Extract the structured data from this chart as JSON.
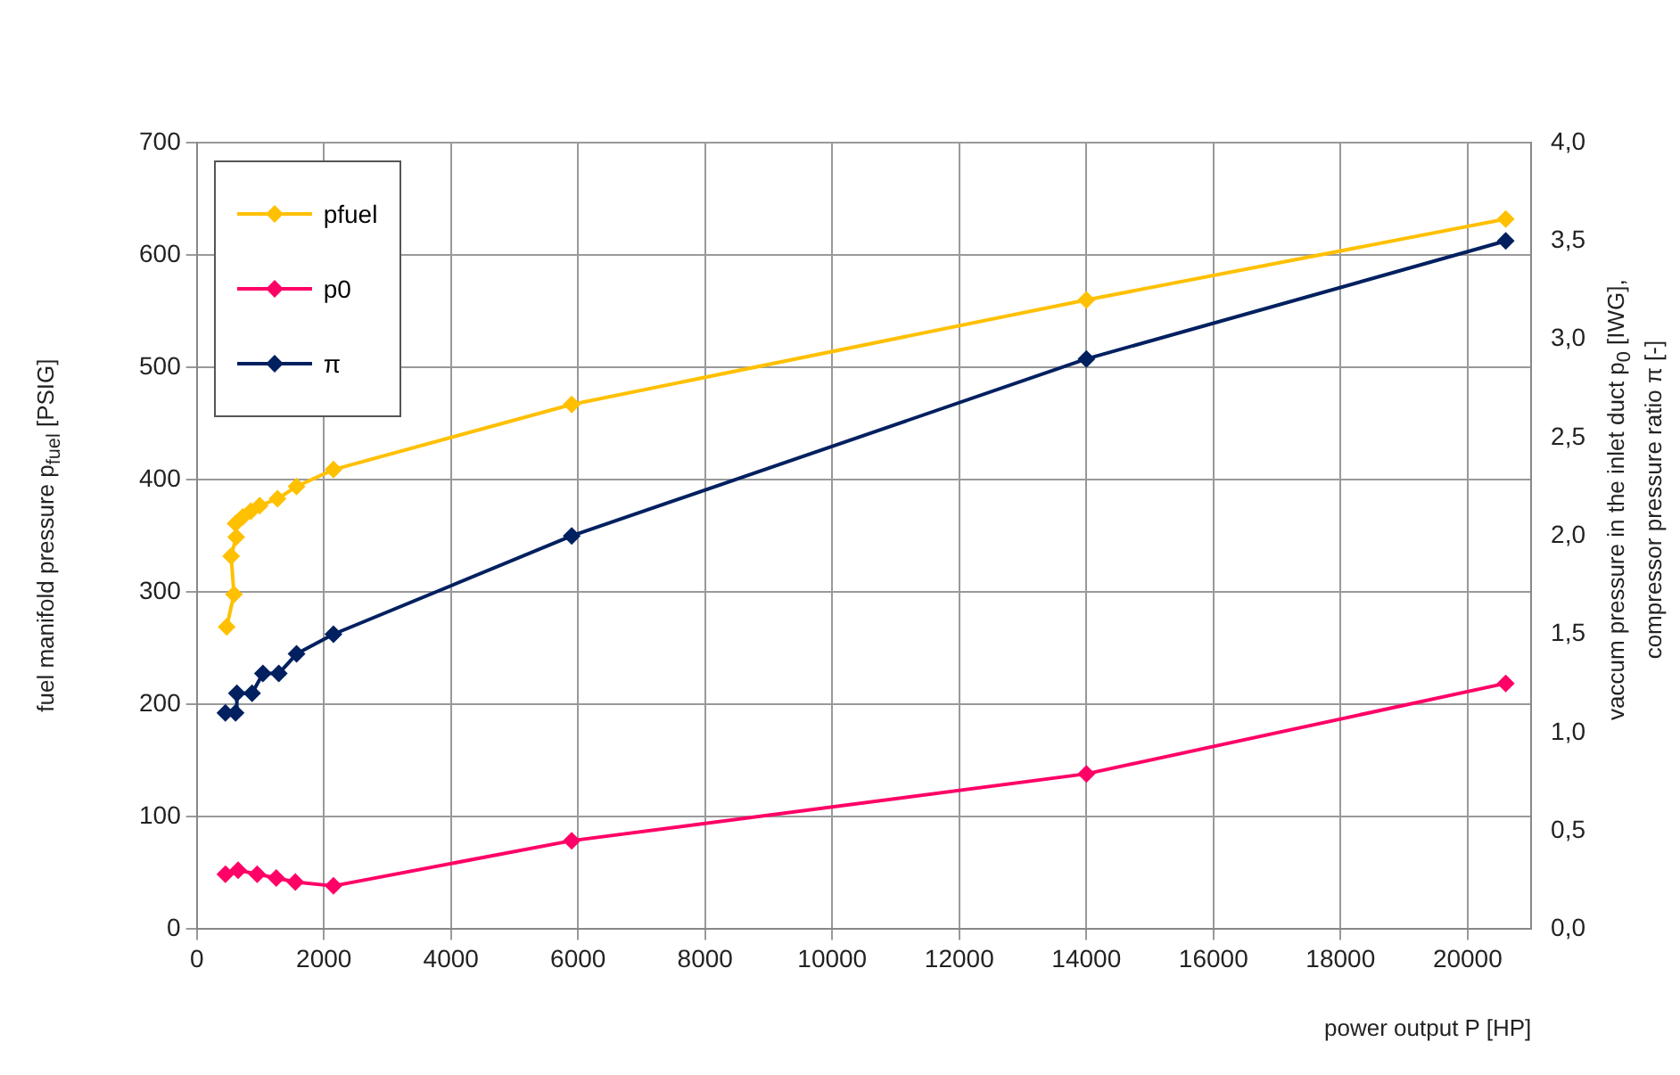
{
  "chart_data": {
    "type": "line",
    "xlabel": "power output  P [HP]",
    "ylabel": "fuel manifold pressure  p$_{fuel}$ [PSIG]",
    "y2label": "vaccum pressure in the inlet duct  p$_{0}$ [IWG],\ncompressor pressure ratio  π [-]",
    "xlim": [
      0,
      21000
    ],
    "xticks": [
      0,
      2000,
      4000,
      6000,
      8000,
      10000,
      12000,
      14000,
      16000,
      18000,
      20000
    ],
    "ylim": [
      0,
      700
    ],
    "yticks": [
      0,
      100,
      200,
      300,
      400,
      500,
      600,
      700
    ],
    "y2lim": [
      0,
      4.0
    ],
    "y2ticks": [
      {
        "value": 0,
        "label": "0,0"
      },
      {
        "value": 0.5,
        "label": "0,5"
      },
      {
        "value": 1.0,
        "label": "1,0"
      },
      {
        "value": 1.5,
        "label": "1,5"
      },
      {
        "value": 2.0,
        "label": "2,0"
      },
      {
        "value": 2.5,
        "label": "2,5"
      },
      {
        "value": 3.0,
        "label": "3,0"
      },
      {
        "value": 3.5,
        "label": "3,5"
      },
      {
        "value": 4.0,
        "label": "4,0"
      }
    ],
    "grid": true,
    "legend": "top left",
    "marker": "diamond",
    "line_style": "solid",
    "series": [
      {
        "name": "pfuel",
        "color": "#ffc000",
        "x": [
          470,
          585,
          540,
          620,
          610,
          725,
          850,
          990,
          1270,
          1570,
          2150,
          5900,
          14000,
          20600
        ],
        "values": [
          269,
          298,
          332,
          349,
          361,
          367,
          372,
          377,
          383,
          394,
          409,
          467,
          560,
          632
        ]
      },
      {
        "name": "p0",
        "color": "#ff0066",
        "axis": "y2",
        "x": [
          450,
          650,
          950,
          1250,
          1550,
          2150,
          5900,
          14000,
          20600
        ],
        "values": [
          0.28,
          0.3,
          0.28,
          0.26,
          0.24,
          0.22,
          0.45,
          0.79,
          1.25
        ]
      },
      {
        "name": "π",
        "color": "#002060",
        "axis": "y2",
        "x": [
          450,
          610,
          630,
          870,
          1040,
          1290,
          1570,
          2150,
          5900,
          14000,
          20600
        ],
        "values": [
          1.1,
          1.1,
          1.2,
          1.2,
          1.3,
          1.3,
          1.4,
          1.5,
          2.0,
          2.9,
          3.5
        ]
      }
    ]
  }
}
